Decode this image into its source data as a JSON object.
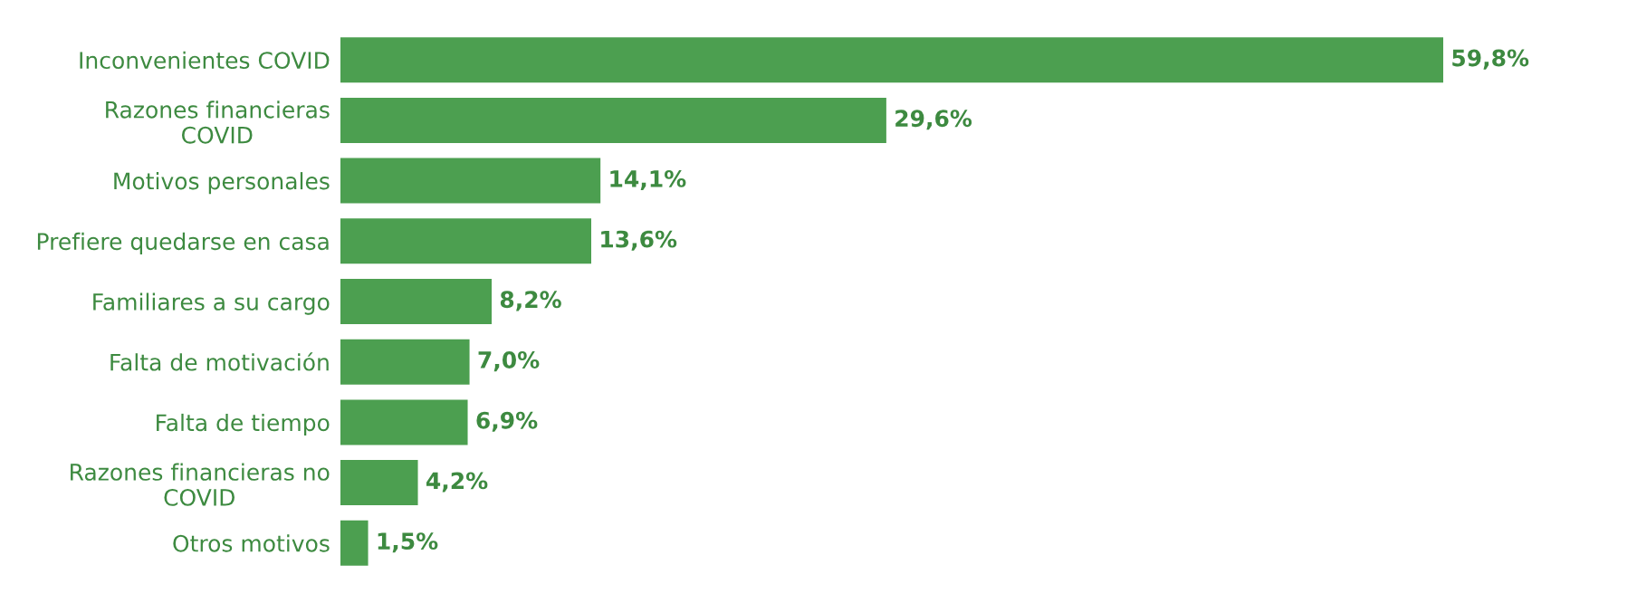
{
  "chart_data": {
    "type": "bar",
    "orientation": "horizontal",
    "categories": [
      "Inconvenientes COVID",
      "Razones financieras\nCOVID",
      "Motivos personales",
      "Prefiere quedarse en casa",
      "Familiares a su cargo",
      "Falta de motivación",
      "Falta de tiempo",
      "Razones financieras no\nCOVID",
      "Otros motivos"
    ],
    "values": [
      59.8,
      29.6,
      14.1,
      13.6,
      8.2,
      7.0,
      6.9,
      4.2,
      1.5
    ],
    "value_labels": [
      "59,8%",
      "29,6%",
      "14,1%",
      "13,6%",
      "8,2%",
      "7,0%",
      "6,9%",
      "4,2%",
      "1,5%"
    ],
    "color": "#4c9f50",
    "grid": false,
    "legend": false
  }
}
